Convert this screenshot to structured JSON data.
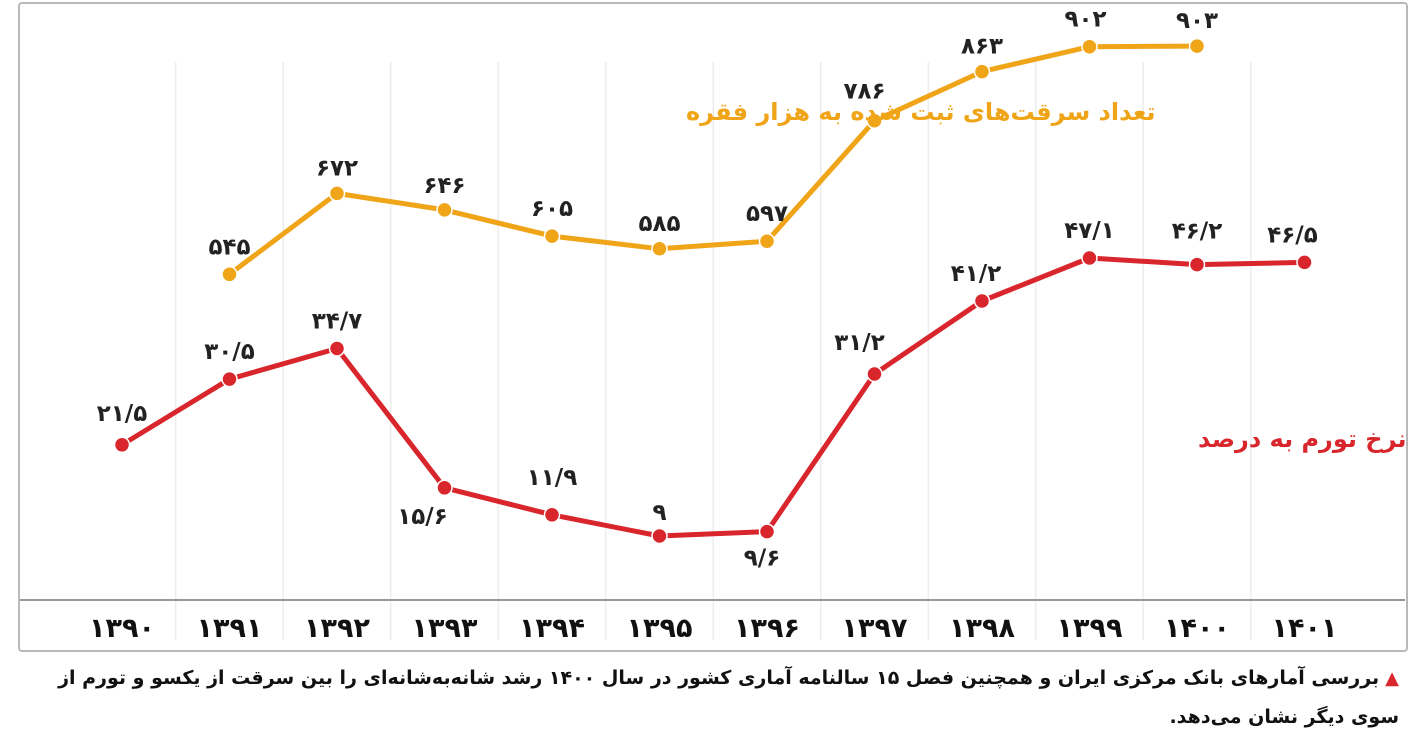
{
  "chart_data": {
    "type": "line",
    "categories": [
      "۱۳۹۰",
      "۱۳۹۱",
      "۱۳۹۲",
      "۱۳۹۳",
      "۱۳۹۴",
      "۱۳۹۵",
      "۱۳۹۶",
      "۱۳۹۷",
      "۱۳۹۸",
      "۱۳۹۹",
      "۱۴۰۰",
      "۱۴۰۱"
    ],
    "series": [
      {
        "name": "تعداد سرقت‌های ثبت شده به هزار فقره",
        "color": "#f0a418",
        "values": [
          null,
          545,
          672,
          646,
          605,
          585,
          597,
          786,
          863,
          902,
          903,
          null
        ],
        "labels": [
          null,
          "۵۴۵",
          "۶۷۲",
          "۶۴۶",
          "۶۰۵",
          "۵۸۵",
          "۵۹۷",
          "۷۸۶",
          "۸۶۳",
          "۹۰۲",
          "۹۰۳",
          null
        ]
      },
      {
        "name": "نرخ تورم به درصد",
        "color": "#d8262c",
        "values": [
          21.5,
          30.5,
          34.7,
          15.6,
          11.9,
          9,
          9.6,
          31.2,
          41.2,
          47.1,
          46.2,
          46.5
        ],
        "labels": [
          "۲۱/۵",
          "۳۰/۵",
          "۳۴/۷",
          "۱۵/۶",
          "۱۱/۹",
          "۹",
          "۹/۶",
          "۳۱/۲",
          "۴۱/۲",
          "۴۷/۱",
          "۴۶/۲",
          "۴۶/۵"
        ]
      }
    ],
    "grid": "vertical",
    "legend": "inline labels"
  },
  "caption": {
    "marker": "▲",
    "line1": "بررسی آمارهای بانک مرکزی ایران و همچنین فصل ۱۵ سالنامه آماری کشور در سال ۱۴۰۰ رشد شانه‌به‌شانه‌ای را بین سرقت از یکسو و تورم از",
    "line2": "سوی دیگر نشان می‌دهد."
  }
}
